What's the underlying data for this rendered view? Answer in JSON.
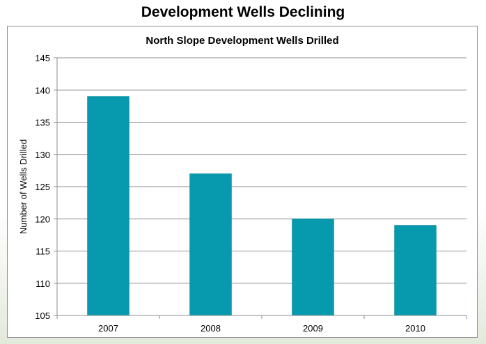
{
  "slide": {
    "title": "Development Wells Declining"
  },
  "chart_data": {
    "type": "bar",
    "title": "North Slope Development Wells Drilled",
    "xlabel": "",
    "ylabel": "Number of Wells Drilled",
    "categories": [
      "2007",
      "2008",
      "2009",
      "2010"
    ],
    "values": [
      139,
      127,
      120,
      119
    ],
    "ylim": [
      105,
      145
    ],
    "yticks": [
      105,
      110,
      115,
      120,
      125,
      130,
      135,
      140,
      145
    ],
    "grid": true,
    "legend": "none",
    "bar_color": "#0799ad"
  }
}
